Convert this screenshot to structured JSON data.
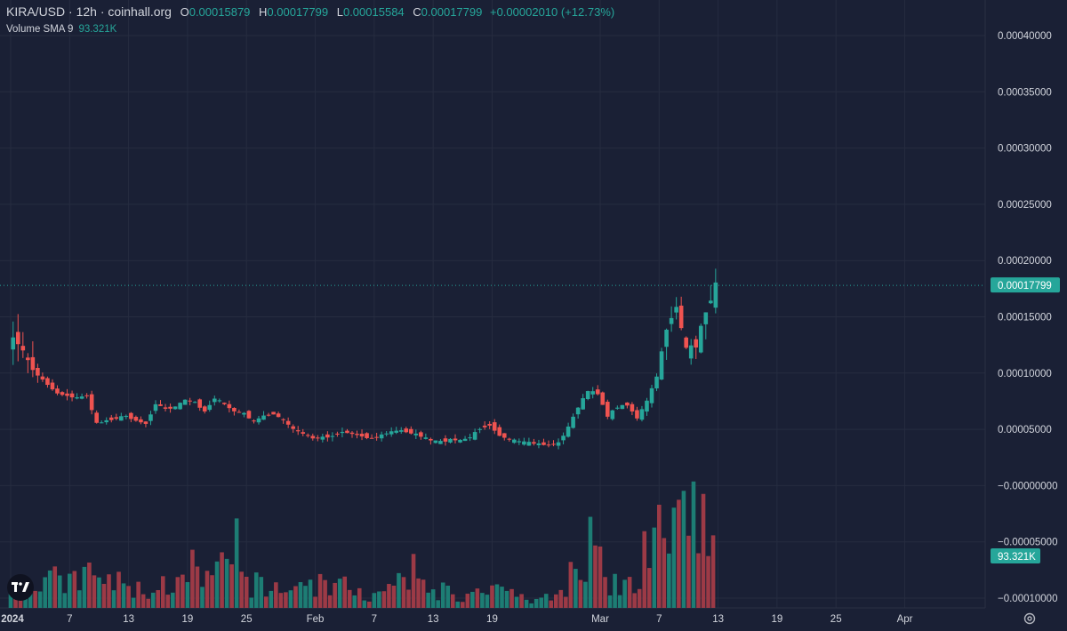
{
  "header": {
    "symbol": "KIRA/USD · 12h · coinhall.org",
    "o_label": "O",
    "o_value": "0.00015879",
    "h_label": "H",
    "h_value": "0.00017799",
    "l_label": "L",
    "l_value": "0.00015584",
    "c_label": "C",
    "c_value": "0.00017799",
    "change": "+0.00002010 (+12.73%)",
    "volume_label": "Volume SMA 9",
    "volume_value": "93.321K"
  },
  "badges": {
    "last_price": "0.00017799",
    "volume": "93.321K"
  },
  "colors": {
    "background": "#1a2035",
    "grid": "#262c40",
    "up": "#26a69a",
    "down": "#ef5350",
    "vol_up": "#1d7d74",
    "vol_down": "#9c3a46",
    "text": "#d1d4dc"
  },
  "icons": [
    "tradingview-logo-icon",
    "settings-gear-icon"
  ],
  "chart_data": {
    "type": "candlestick",
    "y_ticks": [
      "0.00040000",
      "0.00035000",
      "0.00030000",
      "0.00025000",
      "0.00020000",
      "0.00015000",
      "0.00010000",
      "0.00005000",
      "−0.00000000",
      "−0.00005000",
      "−0.00010000"
    ],
    "y_tick_values": [
      0.0004,
      0.00035,
      0.0003,
      0.00025,
      0.0002,
      0.00015,
      0.0001,
      5e-05,
      0,
      -5e-05,
      -0.0001
    ],
    "ylim": [
      -0.000104,
      0.000425
    ],
    "x_ticks": [
      "2024",
      "7",
      "13",
      "19",
      "25",
      "Feb",
      "7",
      "13",
      "19",
      "Mar",
      "7",
      "13",
      "19",
      "25",
      "Apr"
    ],
    "x_tick_dates": [
      "2024-01-01",
      "2024-01-07",
      "2024-01-13",
      "2024-01-19",
      "2024-01-25",
      "2024-02-01",
      "2024-02-07",
      "2024-02-13",
      "2024-02-19",
      "2024-03-01",
      "2024-03-07",
      "2024-03-13",
      "2024-03-19",
      "2024-03-25",
      "2024-04-01"
    ],
    "start": "2024-01-01",
    "close_path": [
      [
        "2024-01-01T00",
        0.00013
      ],
      [
        "2024-01-02T00",
        0.000128
      ],
      [
        "2024-01-03T00",
        0.00011
      ],
      [
        "2024-01-04T00",
        9.8e-05
      ],
      [
        "2024-01-05T00",
        9e-05
      ],
      [
        "2024-01-06T00",
        8.2e-05
      ],
      [
        "2024-01-07T00",
        8e-05
      ],
      [
        "2024-01-08T00",
        7.8e-05
      ],
      [
        "2024-01-09T00",
        8e-05
      ],
      [
        "2024-01-10T00",
        5.5e-05
      ],
      [
        "2024-01-11T00",
        5.8e-05
      ],
      [
        "2024-01-12T00",
        6e-05
      ],
      [
        "2024-01-13T00",
        6.2e-05
      ],
      [
        "2024-01-14T00",
        5.8e-05
      ],
      [
        "2024-01-15T00",
        5.5e-05
      ],
      [
        "2024-01-16T00",
        7.3e-05
      ],
      [
        "2024-01-17T00",
        6.8e-05
      ],
      [
        "2024-01-18T00",
        7e-05
      ],
      [
        "2024-01-19T00",
        7.6e-05
      ],
      [
        "2024-01-20T00",
        7.4e-05
      ],
      [
        "2024-01-21T00",
        6.6e-05
      ],
      [
        "2024-01-22T00",
        7.8e-05
      ],
      [
        "2024-01-23T00",
        7.2e-05
      ],
      [
        "2024-01-24T00",
        6.6e-05
      ],
      [
        "2024-01-25T00",
        6.4e-05
      ],
      [
        "2024-01-26T00",
        5.7e-05
      ],
      [
        "2024-01-27T00",
        6.2e-05
      ],
      [
        "2024-01-28T00",
        6.4e-05
      ],
      [
        "2024-01-29T00",
        5.8e-05
      ],
      [
        "2024-01-30T00",
        5e-05
      ],
      [
        "2024-01-31T00",
        4.6e-05
      ],
      [
        "2024-02-01T00",
        4.2e-05
      ],
      [
        "2024-02-02T00",
        4.3e-05
      ],
      [
        "2024-02-03T00",
        4.4e-05
      ],
      [
        "2024-02-04T00",
        4.8e-05
      ],
      [
        "2024-02-05T00",
        4.6e-05
      ],
      [
        "2024-02-06T00",
        4.4e-05
      ],
      [
        "2024-02-07T00",
        4.2e-05
      ],
      [
        "2024-02-08T00",
        4.5e-05
      ],
      [
        "2024-02-09T00",
        4.8e-05
      ],
      [
        "2024-02-10T00",
        4.9e-05
      ],
      [
        "2024-02-11T00",
        4.7e-05
      ],
      [
        "2024-02-12T00",
        4.4e-05
      ],
      [
        "2024-02-13T00",
        4e-05
      ],
      [
        "2024-02-14T00",
        3.9e-05
      ],
      [
        "2024-02-15T00",
        4.1e-05
      ],
      [
        "2024-02-16T00",
        4e-05
      ],
      [
        "2024-02-17T00",
        4.3e-05
      ],
      [
        "2024-02-18T00",
        5.1e-05
      ],
      [
        "2024-02-19T00",
        5.4e-05
      ],
      [
        "2024-02-20T00",
        4.5e-05
      ],
      [
        "2024-02-21T00",
        4.1e-05
      ],
      [
        "2024-02-22T00",
        3.9e-05
      ],
      [
        "2024-02-23T00",
        3.8e-05
      ],
      [
        "2024-02-24T00",
        3.7e-05
      ],
      [
        "2024-02-25T00",
        3.6e-05
      ],
      [
        "2024-02-26T00",
        3.8e-05
      ],
      [
        "2024-02-27T00",
        5.2e-05
      ],
      [
        "2024-02-28T00",
        7e-05
      ],
      [
        "2024-02-29T00",
        8.4e-05
      ],
      [
        "2024-03-01T00",
        8.2e-05
      ],
      [
        "2024-03-02T00",
        6.2e-05
      ],
      [
        "2024-03-03T00",
        7e-05
      ],
      [
        "2024-03-04T00",
        7.2e-05
      ],
      [
        "2024-03-05T00",
        6e-05
      ],
      [
        "2024-03-06T00",
        7.5e-05
      ],
      [
        "2024-03-07T00",
        9.7e-05
      ],
      [
        "2024-03-08T00",
        0.00014
      ],
      [
        "2024-03-09T00",
        0.00016
      ],
      [
        "2024-03-10T00",
        0.00012
      ],
      [
        "2024-03-11T00",
        0.000125
      ],
      [
        "2024-03-12T00",
        0.000155
      ],
      [
        "2024-03-13T00",
        0.000178
      ]
    ],
    "volume_path": [
      [
        "2024-01-01",
        14
      ],
      [
        "2024-01-03",
        18
      ],
      [
        "2024-01-05",
        24
      ],
      [
        "2024-01-07",
        22
      ],
      [
        "2024-01-09",
        28
      ],
      [
        "2024-01-11",
        24
      ],
      [
        "2024-01-13",
        18
      ],
      [
        "2024-01-15",
        14
      ],
      [
        "2024-01-17",
        22
      ],
      [
        "2024-01-19",
        20
      ],
      [
        "2024-01-21",
        26
      ],
      [
        "2024-01-23",
        34
      ],
      [
        "2024-01-25",
        24
      ],
      [
        "2024-01-27",
        16
      ],
      [
        "2024-01-29",
        18
      ],
      [
        "2024-02-01",
        22
      ],
      [
        "2024-02-04",
        18
      ],
      [
        "2024-02-07",
        10
      ],
      [
        "2024-02-09",
        16
      ],
      [
        "2024-02-11",
        30
      ],
      [
        "2024-02-13",
        18
      ],
      [
        "2024-02-16",
        10
      ],
      [
        "2024-02-19",
        14
      ],
      [
        "2024-02-22",
        10
      ],
      [
        "2024-02-25",
        8
      ],
      [
        "2024-02-27",
        30
      ],
      [
        "2024-02-29",
        60
      ],
      [
        "2024-03-02",
        28
      ],
      [
        "2024-03-04",
        18
      ],
      [
        "2024-03-06",
        35
      ],
      [
        "2024-03-08",
        85
      ],
      [
        "2024-03-10",
        50
      ],
      [
        "2024-03-11",
        120
      ],
      [
        "2024-03-12",
        80
      ],
      [
        "2024-03-13",
        45
      ]
    ],
    "volume_scale": "relative",
    "last_price": 0.00017799,
    "grid": true
  }
}
